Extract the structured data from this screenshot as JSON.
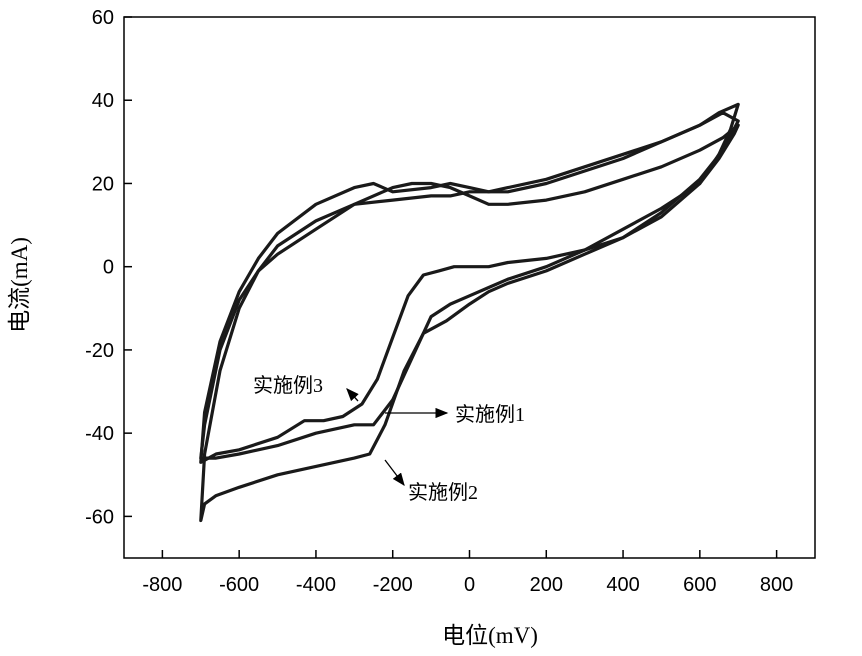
{
  "chart_data": {
    "type": "line",
    "title": "",
    "xlabel": "电位(mV)",
    "ylabel": "电流(mA)",
    "xlim": [
      -900,
      900
    ],
    "ylim": [
      -70,
      60
    ],
    "xticks": [
      -800,
      -600,
      -400,
      -200,
      0,
      200,
      400,
      600,
      800
    ],
    "yticks": [
      -60,
      -40,
      -20,
      0,
      20,
      40,
      60
    ],
    "grid": false,
    "legend": "none",
    "series": [
      {
        "name": "实施例1",
        "x": [
          -700,
          -660,
          -600,
          -500,
          -400,
          -300,
          -250,
          -200,
          -150,
          -100,
          -50,
          0,
          50,
          100,
          200,
          300,
          400,
          500,
          600,
          650,
          690,
          700,
          660,
          600,
          500,
          400,
          300,
          200,
          100,
          50,
          0,
          -50,
          -100,
          -150,
          -200,
          -300,
          -400,
          -500,
          -550,
          -600,
          -650,
          -690,
          -700
        ],
        "y": [
          -46,
          -46,
          -45,
          -43,
          -40,
          -38,
          -38,
          -32,
          -22,
          -12,
          -9,
          -7,
          -5,
          -3,
          0,
          4,
          9,
          14,
          20,
          26,
          32,
          34,
          31,
          28,
          24,
          21,
          18,
          16,
          15,
          15,
          17,
          19,
          20,
          20,
          19,
          15,
          9,
          3,
          -1,
          -8,
          -20,
          -38,
          -46
        ]
      },
      {
        "name": "实施例2",
        "x": [
          -700,
          -690,
          -660,
          -600,
          -500,
          -400,
          -300,
          -260,
          -220,
          -170,
          -120,
          -60,
          0,
          50,
          100,
          200,
          300,
          400,
          500,
          600,
          660,
          700,
          660,
          600,
          500,
          400,
          300,
          200,
          100,
          50,
          0,
          -50,
          -100,
          -200,
          -300,
          -400,
          -500,
          -550,
          -600,
          -650,
          -690,
          -700
        ],
        "y": [
          -61,
          -57,
          -55,
          -53,
          -50,
          -48,
          -46,
          -45,
          -38,
          -25,
          -16,
          -13,
          -9,
          -6,
          -4,
          -1,
          3,
          7,
          13,
          21,
          28,
          35,
          37,
          34,
          30,
          26,
          23,
          20,
          18,
          18,
          18,
          17,
          17,
          16,
          15,
          11,
          5,
          -1,
          -10,
          -25,
          -45,
          -61
        ]
      },
      {
        "name": "实施例3",
        "x": [
          -700,
          -660,
          -600,
          -500,
          -430,
          -380,
          -330,
          -280,
          -240,
          -200,
          -160,
          -120,
          -80,
          -40,
          0,
          50,
          100,
          200,
          300,
          400,
          500,
          600,
          650,
          680,
          700,
          650,
          600,
          500,
          400,
          300,
          200,
          100,
          50,
          0,
          -50,
          -100,
          -200,
          -250,
          -300,
          -400,
          -500,
          -550,
          -600,
          -650,
          -690,
          -700
        ],
        "y": [
          -47,
          -45,
          -44,
          -41,
          -37,
          -37,
          -36,
          -33,
          -27,
          -17,
          -7,
          -2,
          -1,
          0,
          0,
          0,
          1,
          2,
          4,
          7,
          12,
          20,
          27,
          33,
          39,
          37,
          34,
          30,
          27,
          24,
          21,
          19,
          18,
          19,
          20,
          19,
          18,
          20,
          19,
          15,
          8,
          2,
          -6,
          -18,
          -35,
          -47
        ]
      }
    ],
    "annotations": [
      {
        "text": "实施例3",
        "target_series": "实施例3",
        "x": -360,
        "y": -28
      },
      {
        "text": "实施例1",
        "target_series": "实施例1",
        "x": 150,
        "y": -35
      },
      {
        "text": "实施例2",
        "target_series": "实施例2",
        "x": 0,
        "y": -55
      }
    ]
  }
}
